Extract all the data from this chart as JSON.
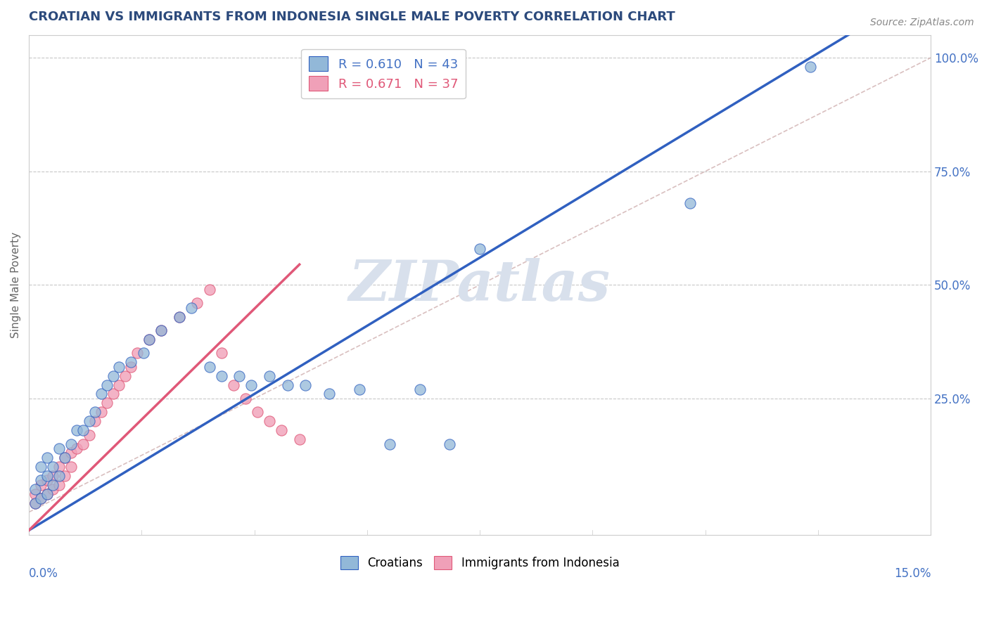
{
  "title": "CROATIAN VS IMMIGRANTS FROM INDONESIA SINGLE MALE POVERTY CORRELATION CHART",
  "source": "Source: ZipAtlas.com",
  "ylabel": "Single Male Poverty",
  "xmin": 0.0,
  "xmax": 0.15,
  "ymin": -0.05,
  "ymax": 1.05,
  "blue_color": "#92b8d8",
  "pink_color": "#f0a0b8",
  "blue_line_color": "#3060c0",
  "pink_line_color": "#e05878",
  "diag_color": "#d0b0b0",
  "bg_color": "#ffffff",
  "grid_color": "#c8c8c8",
  "title_color": "#2c4a7c",
  "axis_color": "#4472c4",
  "watermark_color": "#d8e0ec",
  "watermark": "ZIPatlas",
  "legend1_label": "R = 0.610   N = 43",
  "legend2_label": "R = 0.671   N = 37",
  "bottom_legend1": "Croatians",
  "bottom_legend2": "Immigrants from Indonesia",
  "cr_x": [
    0.001,
    0.001,
    0.002,
    0.002,
    0.002,
    0.003,
    0.003,
    0.003,
    0.004,
    0.004,
    0.005,
    0.005,
    0.006,
    0.007,
    0.008,
    0.009,
    0.01,
    0.011,
    0.012,
    0.013,
    0.014,
    0.015,
    0.017,
    0.019,
    0.02,
    0.022,
    0.025,
    0.027,
    0.03,
    0.032,
    0.035,
    0.037,
    0.04,
    0.043,
    0.046,
    0.05,
    0.055,
    0.06,
    0.065,
    0.07,
    0.075,
    0.11,
    0.13
  ],
  "cr_y": [
    0.02,
    0.05,
    0.03,
    0.07,
    0.1,
    0.04,
    0.08,
    0.12,
    0.06,
    0.1,
    0.08,
    0.14,
    0.12,
    0.15,
    0.18,
    0.18,
    0.2,
    0.22,
    0.26,
    0.28,
    0.3,
    0.32,
    0.33,
    0.35,
    0.38,
    0.4,
    0.43,
    0.45,
    0.32,
    0.3,
    0.3,
    0.28,
    0.3,
    0.28,
    0.28,
    0.26,
    0.27,
    0.15,
    0.27,
    0.15,
    0.58,
    0.68,
    0.98
  ],
  "id_x": [
    0.001,
    0.001,
    0.002,
    0.002,
    0.003,
    0.003,
    0.004,
    0.004,
    0.005,
    0.005,
    0.006,
    0.006,
    0.007,
    0.007,
    0.008,
    0.009,
    0.01,
    0.011,
    0.012,
    0.013,
    0.014,
    0.015,
    0.016,
    0.017,
    0.018,
    0.02,
    0.022,
    0.025,
    0.028,
    0.03,
    0.032,
    0.034,
    0.036,
    0.038,
    0.04,
    0.042,
    0.045
  ],
  "id_y": [
    0.02,
    0.04,
    0.03,
    0.06,
    0.04,
    0.07,
    0.05,
    0.08,
    0.06,
    0.1,
    0.08,
    0.12,
    0.1,
    0.13,
    0.14,
    0.15,
    0.17,
    0.2,
    0.22,
    0.24,
    0.26,
    0.28,
    0.3,
    0.32,
    0.35,
    0.38,
    0.4,
    0.43,
    0.46,
    0.49,
    0.35,
    0.28,
    0.25,
    0.22,
    0.2,
    0.18,
    0.16
  ]
}
